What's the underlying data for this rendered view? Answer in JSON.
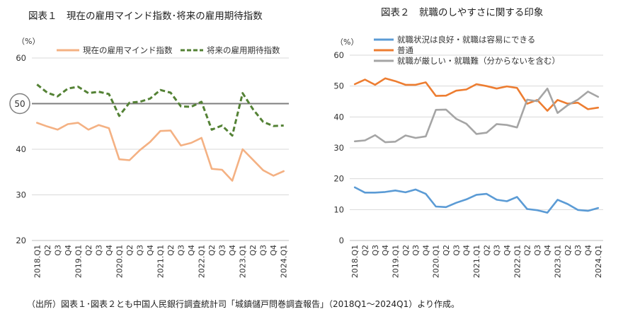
{
  "chart_data": [
    {
      "type": "line",
      "title": "図表１　現在の雇用マインド指数･将来の雇用期待指数",
      "ylabel": "（%）",
      "xlabel": "",
      "ylim": [
        20,
        60
      ],
      "yticks": [
        "20",
        "30",
        "40",
        "50",
        "60"
      ],
      "reference_line": {
        "value": 50,
        "label": "50"
      },
      "categories": [
        "2018.Q1",
        "Q2",
        "Q3",
        "Q4",
        "2019.Q1",
        "Q2",
        "Q3",
        "Q4",
        "2020.Q1",
        "Q2",
        "Q3",
        "Q4",
        "2021.Q1",
        "Q2",
        "Q3",
        "Q4",
        "2022.Q1",
        "Q2",
        "Q3",
        "Q4",
        "2023.Q1",
        "Q2",
        "Q3",
        "Q4",
        "2024.Q1"
      ],
      "series": [
        {
          "name": "現在の雇用マインド指数",
          "color": "#f4b183",
          "style": "solid",
          "values": [
            45.8,
            45.0,
            44.3,
            45.5,
            45.8,
            44.3,
            45.3,
            44.6,
            37.8,
            37.6,
            39.8,
            41.6,
            44.0,
            44.1,
            40.8,
            41.4,
            42.5,
            35.7,
            35.5,
            33.1,
            40.0,
            37.7,
            35.4,
            34.2,
            35.2
          ]
        },
        {
          "name": "将来の雇用期待指数",
          "color": "#548235",
          "style": "dashed",
          "values": [
            54.2,
            52.4,
            51.6,
            53.3,
            53.7,
            52.3,
            52.6,
            52.1,
            47.3,
            50.2,
            50.4,
            51.1,
            53.0,
            52.4,
            49.4,
            49.3,
            50.4,
            44.3,
            45.2,
            43.0,
            52.3,
            48.8,
            46.0,
            45.1,
            45.2
          ]
        }
      ]
    },
    {
      "type": "line",
      "title": "図表２　就職のしやすさに関する印象",
      "ylabel": "（%）",
      "xlabel": "",
      "ylim": [
        0,
        60
      ],
      "yticks": [
        "0",
        "10",
        "20",
        "30",
        "40",
        "50",
        "60"
      ],
      "categories": [
        "2018.Q1",
        "Q2",
        "Q3",
        "Q4",
        "2019.Q1",
        "Q2",
        "Q3",
        "Q4",
        "2020.Q1",
        "Q2",
        "Q3",
        "Q4",
        "2021.Q1",
        "Q2",
        "Q3",
        "Q4",
        "2022.Q1",
        "Q2",
        "Q3",
        "Q4",
        "2023.Q1",
        "Q2",
        "Q3",
        "Q4",
        "2024.Q1"
      ],
      "series": [
        {
          "name": "就職状況は良好・就職は容易にできる",
          "color": "#5b9bd5",
          "values": [
            17.2,
            15.5,
            15.5,
            15.7,
            16.2,
            15.6,
            16.5,
            15.1,
            11.0,
            10.8,
            12.2,
            13.3,
            14.8,
            15.1,
            13.2,
            12.7,
            14.1,
            10.2,
            9.8,
            9.0,
            13.2,
            11.8,
            9.9,
            9.6,
            10.5
          ]
        },
        {
          "name": "普通",
          "color": "#ed7d31",
          "values": [
            50.6,
            52.1,
            50.4,
            52.5,
            51.6,
            50.4,
            50.4,
            51.2,
            46.8,
            46.9,
            48.5,
            48.9,
            50.6,
            50.0,
            49.2,
            49.9,
            49.4,
            44.3,
            45.5,
            42.0,
            45.5,
            44.3,
            44.6,
            42.5,
            43.0
          ]
        },
        {
          "name": "就職が厳しい・就職難（分からないを含む）",
          "color": "#a5a5a5",
          "values": [
            32.1,
            32.4,
            34.1,
            31.8,
            32.0,
            34.0,
            33.2,
            33.7,
            42.3,
            42.4,
            39.4,
            37.8,
            34.5,
            34.9,
            37.7,
            37.4,
            36.6,
            45.6,
            45.1,
            49.2,
            41.3,
            43.8,
            45.6,
            48.2,
            46.5
          ]
        }
      ]
    }
  ],
  "source_note": "（出所）図表１･図表２とも中国人民銀行調査統計司「城鎮儲戸問巻調査報告」（2018Q1～2024Q1）より作成。"
}
